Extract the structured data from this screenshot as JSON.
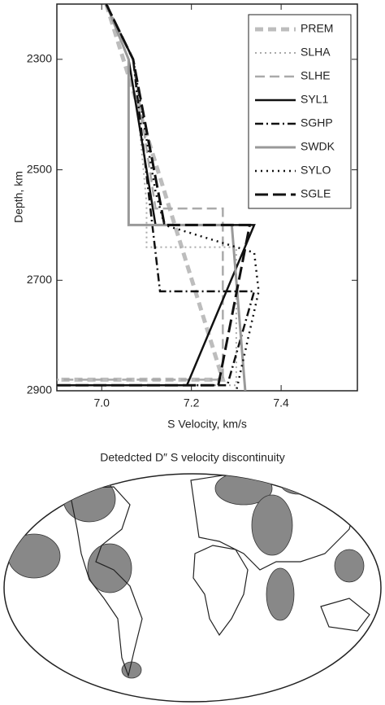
{
  "chart_data": {
    "type": "line",
    "xlabel": "S Velocity, km/s",
    "ylabel": "Depth, km",
    "xlim": [
      6.9,
      7.57
    ],
    "ylim": [
      2200,
      2900
    ],
    "y_inverted": true,
    "xticks": [
      {
        "value": 7,
        "label": "7.0"
      },
      7.2,
      7.4
    ],
    "yticks": [
      2300,
      2500,
      2700,
      2900
    ],
    "series": [
      {
        "name": "PREM",
        "color": "#bdbdbd",
        "dash": "10,6",
        "linewidth": 5,
        "x": [
          7.01,
          7.27,
          6.9
        ],
        "y": [
          2200,
          2880,
          2880
        ]
      },
      {
        "name": "SLHA",
        "color": "#aaaaaa",
        "dash": "2,4",
        "linewidth": 2,
        "x": [
          7.01,
          7.07,
          7.1,
          7.1,
          7.3,
          7.3,
          6.9
        ],
        "y": [
          2200,
          2300,
          2560,
          2640,
          2640,
          2890,
          2890
        ]
      },
      {
        "name": "SLHE",
        "color": "#aaaaaa",
        "dash": "12,6",
        "linewidth": 2.5,
        "x": [
          7.01,
          7.07,
          7.12,
          7.27,
          7.27,
          6.9
        ],
        "y": [
          2200,
          2300,
          2570,
          2570,
          2880,
          2880
        ]
      },
      {
        "name": "SYL1",
        "color": "#111111",
        "dash": "none",
        "linewidth": 2.5,
        "x": [
          7.01,
          7.06,
          7.12,
          7.34,
          7.19,
          6.9
        ],
        "y": [
          2200,
          2300,
          2600,
          2600,
          2890,
          2890
        ]
      },
      {
        "name": "SGHP",
        "color": "#111111",
        "dash": "10,4,2,4",
        "linewidth": 2.5,
        "x": [
          7.01,
          7.07,
          7.13,
          7.34,
          7.28,
          6.9
        ],
        "y": [
          2200,
          2300,
          2720,
          2720,
          2890,
          2890
        ]
      },
      {
        "name": "SWDK",
        "color": "#999999",
        "dash": "none",
        "linewidth": 3,
        "x": [
          7.01,
          7.06,
          7.06,
          7.29,
          7.32
        ],
        "y": [
          2200,
          2300,
          2600,
          2600,
          2900
        ]
      },
      {
        "name": "SYLO",
        "color": "#111111",
        "dash": "2,5",
        "linewidth": 2.5,
        "x": [
          7.01,
          7.07,
          7.12,
          7.14,
          7.34,
          7.35,
          7.3
        ],
        "y": [
          2200,
          2300,
          2540,
          2600,
          2650,
          2720,
          2900
        ]
      },
      {
        "name": "SGLE",
        "color": "#111111",
        "dash": "16,6",
        "linewidth": 3,
        "x": [
          7.01,
          7.07,
          7.14,
          7.33,
          7.26,
          6.9
        ],
        "y": [
          2200,
          2300,
          2600,
          2600,
          2890,
          2890
        ]
      }
    ]
  },
  "map": {
    "title": "Detedcted D″ S velocity discontinuity"
  }
}
